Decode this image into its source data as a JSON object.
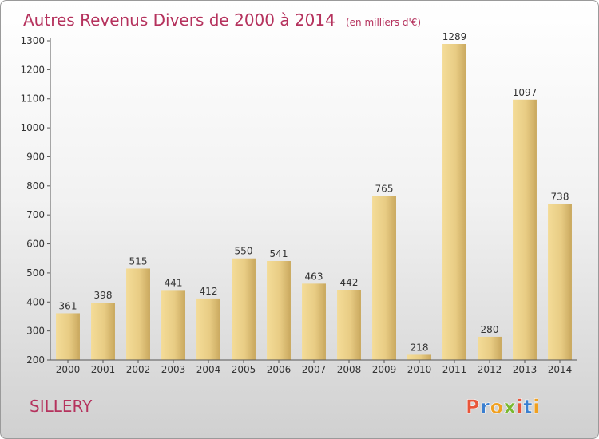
{
  "chart_data": {
    "type": "bar",
    "title": "Autres Revenus Divers de 2000 à 2014",
    "subtitle": "(en milliers d'€)",
    "categories": [
      "2000",
      "2001",
      "2002",
      "2003",
      "2004",
      "2005",
      "2006",
      "2007",
      "2008",
      "2009",
      "2010",
      "2011",
      "2012",
      "2013",
      "2014"
    ],
    "values": [
      361,
      398,
      515,
      441,
      412,
      550,
      541,
      463,
      442,
      765,
      218,
      1289,
      280,
      1097,
      738
    ],
    "value_labels": [
      "361",
      "398",
      "515",
      "441",
      "412",
      "550",
      "541",
      "463",
      "442",
      "765",
      "218",
      "1289",
      "280",
      "1097",
      "738"
    ],
    "ylim": [
      200,
      1300
    ],
    "yticks": [
      "200",
      "300",
      "400",
      "500",
      "600",
      "700",
      "800",
      "900",
      "1000",
      "1100",
      "1200",
      "1300"
    ],
    "grid": false,
    "legend": "none",
    "bar_color": "#e6cc88"
  },
  "footer": {
    "commune": "SILLERY",
    "logo_letters": [
      "P",
      "r",
      "o",
      "x",
      "i",
      "t",
      "i"
    ],
    "logo_colors": [
      "#e8553a",
      "#3a7fd0",
      "#f0a020",
      "#7ab830",
      "#e8553a",
      "#3a7fd0",
      "#f0a020"
    ]
  }
}
